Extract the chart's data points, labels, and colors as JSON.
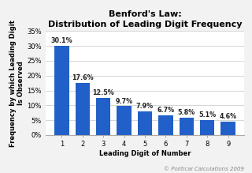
{
  "title": "Benford's Law:\nDistribution of Leading Digit Frequency",
  "xlabel": "Leading Digit of Number",
  "ylabel": "Frequency by which Leading Digit\nIs Observed",
  "categories": [
    1,
    2,
    3,
    4,
    5,
    6,
    7,
    8,
    9
  ],
  "values": [
    30.1,
    17.6,
    12.5,
    9.7,
    7.9,
    6.7,
    5.8,
    5.1,
    4.6
  ],
  "labels": [
    "30.1%",
    "17.6%",
    "12.5%",
    "9.7%",
    "7.9%",
    "6.7%",
    "5.8%",
    "5.1%",
    "4.6%"
  ],
  "bar_color": "#2060c8",
  "ylim": [
    0,
    35
  ],
  "yticks": [
    0,
    5,
    10,
    15,
    20,
    25,
    30,
    35
  ],
  "ytick_labels": [
    "0%",
    "5%",
    "10%",
    "15%",
    "20%",
    "25%",
    "30%",
    "35%"
  ],
  "background_color": "#f2f2f2",
  "plot_bg_color": "#ffffff",
  "grid_color": "#d0d0d0",
  "title_fontsize": 8,
  "label_fontsize": 6,
  "tick_fontsize": 6,
  "bar_label_fontsize": 5.8,
  "watermark": "© Political Calculations 2009"
}
